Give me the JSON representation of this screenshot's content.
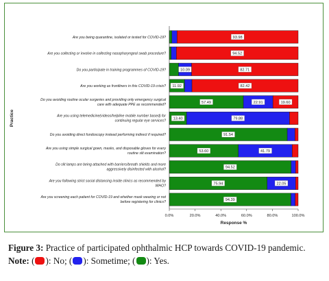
{
  "chart_data": {
    "type": "bar",
    "orientation": "horizontal",
    "stacked": true,
    "xlabel": "Response %",
    "ylabel": "Practice",
    "xlim": [
      0,
      100
    ],
    "x_ticks": [
      "0.0%",
      "20.0%",
      "40.0%",
      "60.0%",
      "80.0%",
      "100.0%"
    ],
    "categories": [
      [
        "Are you being quarantine, isolated or tested for COVID-19?"
      ],
      [
        "Are you collecting or involve in collecting nasopharyngeal swab procedure?"
      ],
      [
        "Do you participate in training programmes of COVID-19?"
      ],
      [
        "Are you working as frontliners in this COVID-19 crisis?"
      ],
      [
        "Do you avoiding routine ocular surgeries and providing only emergency surgical",
        "care with adequate PPE as recommended?"
      ],
      [
        "Are you using telemedicine(videos/helpline mobile number based) for",
        "continuing regular eye services?"
      ],
      [
        "Do you avoiding direct fundoscopy instead performing indirect if required?"
      ],
      [
        "Are you using simple surgical gown, masks, and disposable gloves for every",
        "routine slit examination?"
      ],
      [
        "Do slit lamps are being attached with barriers/breath shields and more",
        "aggressively disinfected with alcohol?"
      ],
      [
        "Are you following strict social distancing inside clinics as recommended by",
        "WHO?"
      ],
      [
        "Are you screening each patient for COVID-19 and whether mask wearing or not",
        "before registering for clinics?"
      ]
    ],
    "series": [
      {
        "key": "yes",
        "color": "#138a13",
        "values": [
          2.0,
          1.5,
          7.2,
          11.92,
          57.49,
          13.4,
          91.54,
          53.6,
          94.52,
          75.94,
          94.39
        ],
        "labels": [
          "",
          "",
          "",
          "11.92",
          "57.49",
          "13.40",
          "91.54",
          "53.60",
          "94.52",
          "75.94",
          "94.39"
        ]
      },
      {
        "key": "sometime",
        "color": "#2222ee",
        "values": [
          4.02,
          4.0,
          10.09,
          5.66,
          22.91,
          79.88,
          6.0,
          41.79,
          3.5,
          22.05,
          3.3
        ],
        "labels": [
          "",
          "",
          "10.09",
          "",
          "22.91",
          "79.88",
          "",
          "41.79",
          "",
          "22.05",
          ""
        ]
      },
      {
        "key": "no",
        "color": "#ee1111",
        "values": [
          93.98,
          94.52,
          82.71,
          82.42,
          19.6,
          6.72,
          2.46,
          4.61,
          1.98,
          2.01,
          2.31
        ],
        "labels": [
          "93.98",
          "94.52",
          "82.71",
          "82.42",
          "19.60",
          "",
          "",
          "",
          "",
          "",
          ""
        ]
      }
    ]
  },
  "caption": {
    "figure_label": "Figure 3:",
    "text": " Practice of participated ophthalmic HCP towards COVID-19 pandemic. ",
    "note_label": "Note:",
    "legend": [
      {
        "color": "#ee1111",
        "label": "No;"
      },
      {
        "color": "#2222ee",
        "label": "Sometime;"
      },
      {
        "color": "#138a13",
        "label": "Yes."
      }
    ]
  }
}
